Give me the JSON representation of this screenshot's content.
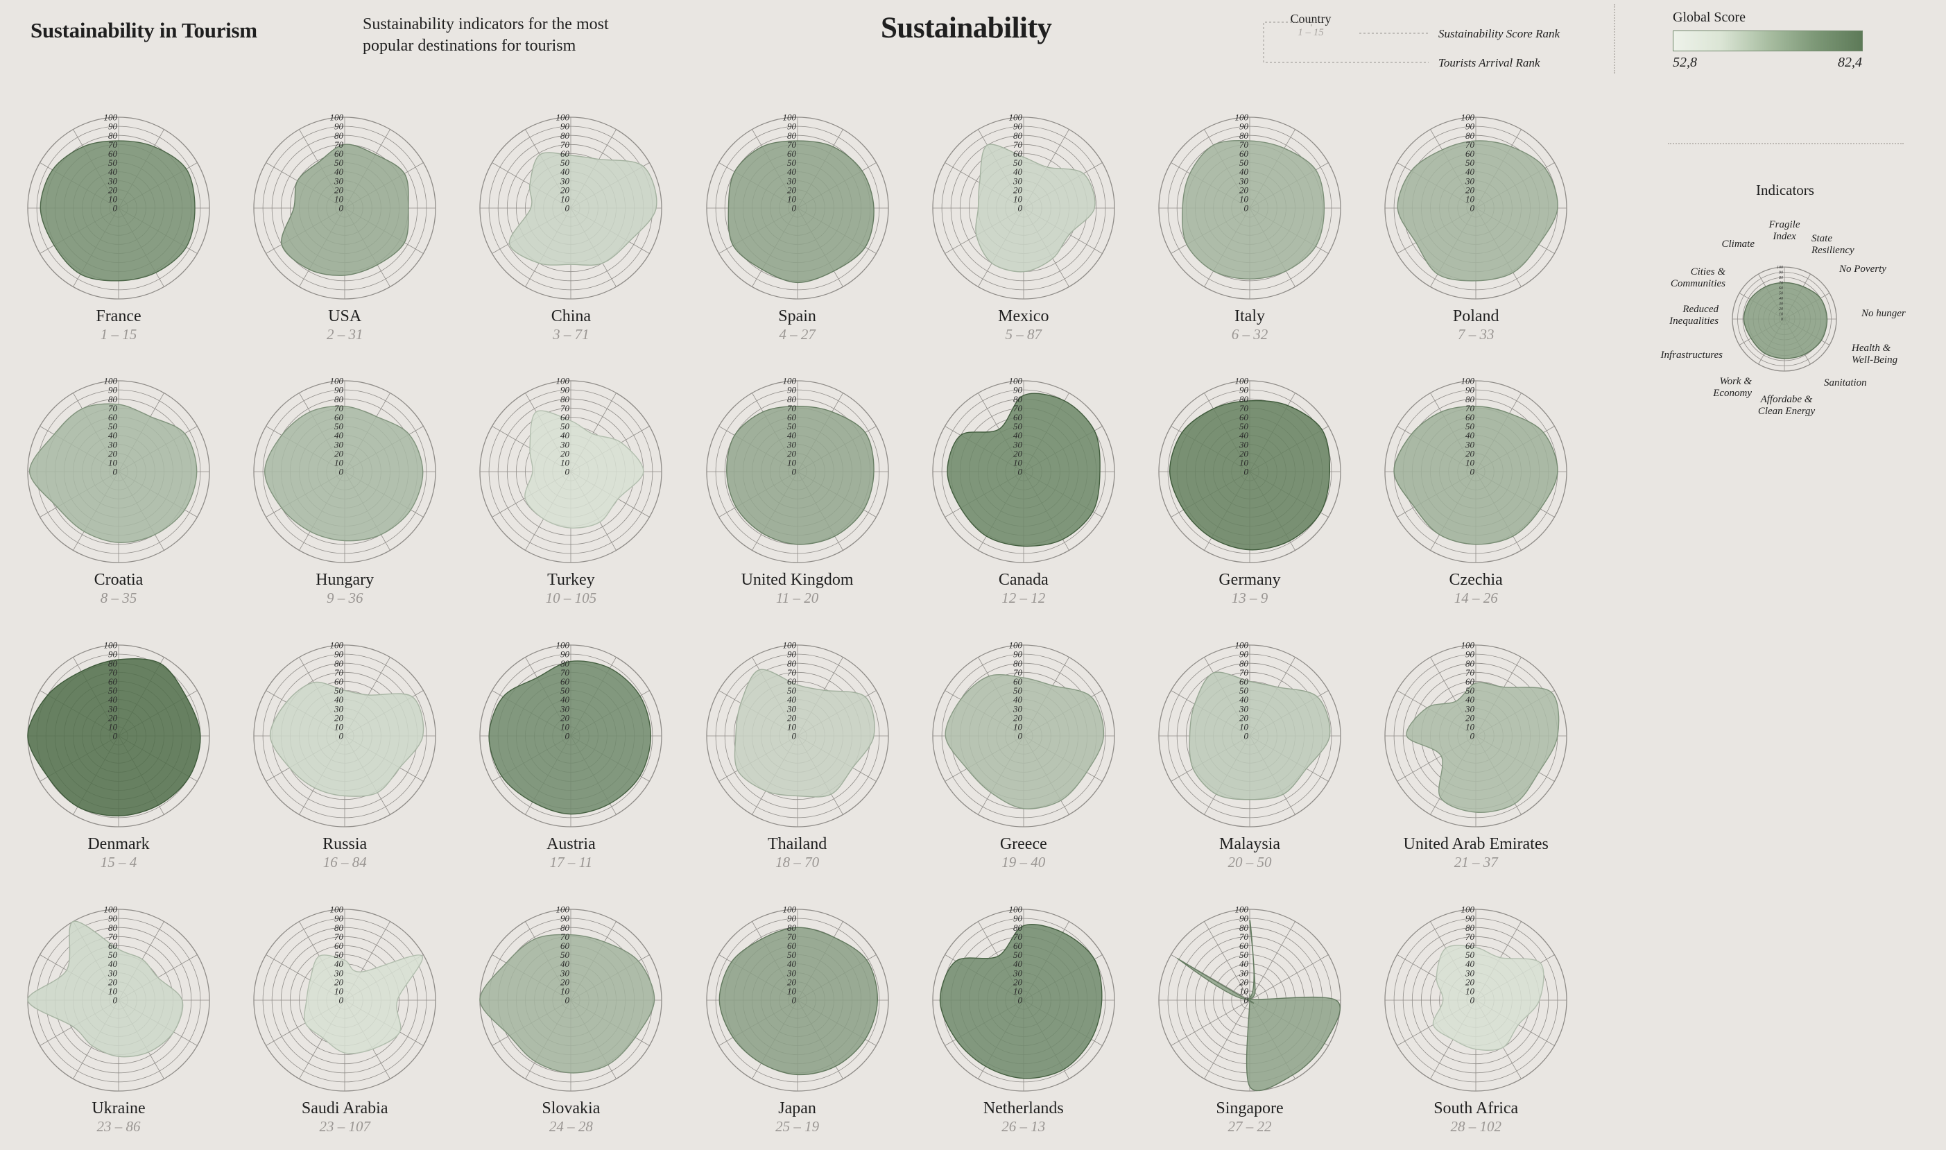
{
  "header": {
    "title": "Sustainability in Tourism",
    "subtitle_line1": "Sustainability indicators for the most",
    "subtitle_line2": "popular destinations for tourism",
    "center_title": "Sustainability"
  },
  "key": {
    "country_label": "Country",
    "example_rank": "1 – 15",
    "score_rank_label": "Sustainability Score Rank",
    "arrival_rank_label": "Tourists Arrival Rank"
  },
  "score_legend": {
    "title": "Global Score",
    "min": "52,8",
    "max": "82,4",
    "min_value": 52.8,
    "max_value": 82.4,
    "color_low": "#eef2ea",
    "color_high": "#5d7a58"
  },
  "indicators": {
    "title": "Indicators",
    "labels": [
      [
        "Fragile",
        "Index"
      ],
      [
        "State",
        "Resiliency"
      ],
      [
        "No Poverty"
      ],
      [
        "No hunger"
      ],
      [
        "Health &",
        "Well-Being"
      ],
      [
        "Sanitation"
      ],
      [
        "Affordabe &",
        "Clean Energy"
      ],
      [
        "Work &",
        "Economy"
      ],
      [
        "Infrastructures"
      ],
      [
        "Reduced",
        "Inequalities"
      ],
      [
        "Cities &",
        "Communities"
      ],
      [
        "Climate"
      ]
    ]
  },
  "colors": {
    "background": "#e9e6e2",
    "grid": "#8f8c88",
    "low": "#eef2ea",
    "high": "#4a6a45"
  },
  "chart_data": {
    "type": "radar",
    "axis_ticks": [
      "0",
      "10",
      "20",
      "30",
      "40",
      "50",
      "60",
      "70",
      "80",
      "90",
      "100"
    ],
    "rmax": 100,
    "countries": [
      {
        "name": "France",
        "rank": "1 – 15",
        "score": 0.72,
        "values": [
          74,
          78,
          86,
          84,
          86,
          82,
          80,
          84,
          82,
          86,
          84,
          78
        ]
      },
      {
        "name": "USA",
        "rank": "2 – 31",
        "score": 0.53,
        "values": [
          70,
          68,
          76,
          70,
          76,
          72,
          74,
          78,
          80,
          56,
          60,
          58
        ]
      },
      {
        "name": "China",
        "rank": "3 – 71",
        "score": 0.22,
        "values": [
          58,
          62,
          92,
          94,
          74,
          70,
          62,
          70,
          78,
          44,
          52,
          68
        ]
      },
      {
        "name": "Spain",
        "rank": "4 – 27",
        "score": 0.58,
        "values": [
          74,
          78,
          82,
          84,
          86,
          80,
          82,
          78,
          82,
          76,
          80,
          78
        ]
      },
      {
        "name": "Mexico",
        "rank": "5 – 87",
        "score": 0.22,
        "values": [
          56,
          52,
          76,
          78,
          58,
          64,
          70,
          70,
          60,
          50,
          56,
          80
        ]
      },
      {
        "name": "Italy",
        "rank": "6 – 32",
        "score": 0.45,
        "values": [
          74,
          76,
          84,
          82,
          84,
          80,
          78,
          80,
          80,
          74,
          76,
          80
        ]
      },
      {
        "name": "Poland",
        "rank": "7 – 33",
        "score": 0.45,
        "values": [
          74,
          78,
          88,
          90,
          80,
          82,
          80,
          84,
          76,
          86,
          82,
          74
        ]
      },
      {
        "name": "Croatia",
        "rank": "8 – 35",
        "score": 0.42,
        "values": [
          74,
          70,
          84,
          86,
          84,
          80,
          78,
          76,
          78,
          98,
          82,
          80
        ]
      },
      {
        "name": "Hungary",
        "rank": "9 – 36",
        "score": 0.42,
        "values": [
          72,
          70,
          82,
          86,
          84,
          80,
          76,
          76,
          80,
          88,
          80,
          76
        ]
      },
      {
        "name": "Turkey",
        "rank": "10 – 105",
        "score": 0.14,
        "values": [
          56,
          48,
          64,
          80,
          60,
          64,
          62,
          60,
          58,
          42,
          52,
          76
        ]
      },
      {
        "name": "United Kingdom",
        "rank": "11 – 20",
        "score": 0.55,
        "values": [
          72,
          76,
          86,
          84,
          84,
          82,
          80,
          78,
          78,
          78,
          80,
          76
        ]
      },
      {
        "name": "Canada",
        "rank": "12 – 12",
        "score": 0.78,
        "values": [
          84,
          90,
          90,
          84,
          88,
          86,
          82,
          82,
          80,
          84,
          80,
          54
        ]
      },
      {
        "name": "Germany",
        "rank": "13 – 9",
        "score": 0.83,
        "values": [
          78,
          84,
          92,
          88,
          90,
          88,
          86,
          84,
          84,
          88,
          86,
          80
        ]
      },
      {
        "name": "Czechia",
        "rank": "14 – 26",
        "score": 0.48,
        "values": [
          72,
          74,
          86,
          90,
          82,
          82,
          80,
          80,
          78,
          90,
          82,
          76
        ]
      },
      {
        "name": "Denmark",
        "rank": "15 – 4",
        "score": 0.96,
        "values": [
          84,
          92,
          86,
          90,
          90,
          88,
          88,
          90,
          90,
          100,
          90,
          82
        ]
      },
      {
        "name": "Russia",
        "rank": "16 – 84",
        "score": 0.2,
        "values": [
          50,
          52,
          86,
          86,
          70,
          72,
          66,
          66,
          70,
          82,
          74,
          68
        ]
      },
      {
        "name": "Austria",
        "rank": "17 – 11",
        "score": 0.76,
        "values": [
          82,
          86,
          88,
          88,
          88,
          86,
          86,
          84,
          88,
          90,
          86,
          74
        ]
      },
      {
        "name": "Thailand",
        "rank": "18 – 70",
        "score": 0.24,
        "values": [
          56,
          58,
          86,
          84,
          70,
          74,
          66,
          70,
          76,
          68,
          72,
          84
        ]
      },
      {
        "name": "Greece",
        "rank": "19 – 40",
        "score": 0.38,
        "values": [
          64,
          64,
          86,
          88,
          80,
          82,
          80,
          72,
          72,
          86,
          80,
          76
        ]
      },
      {
        "name": "Malaysia",
        "rank": "20 – 50",
        "score": 0.3,
        "values": [
          60,
          62,
          86,
          88,
          72,
          74,
          70,
          74,
          72,
          66,
          70,
          80
        ]
      },
      {
        "name": "United Arab Emirates",
        "rank": "21 – 37",
        "score": 0.4,
        "values": [
          58,
          62,
          96,
          90,
          80,
          86,
          84,
          78,
          44,
          76,
          62,
          44
        ]
      },
      {
        "name": "Ukraine",
        "rank": "23 – 86",
        "score": 0.2,
        "values": [
          56,
          52,
          50,
          70,
          70,
          66,
          62,
          58,
          58,
          100,
          66,
          100
        ]
      },
      {
        "name": "Saudi Arabia",
        "rank": "23 – 107",
        "score": 0.14,
        "values": [
          44,
          36,
          98,
          58,
          70,
          62,
          58,
          48,
          50,
          42,
          44,
          56
        ]
      },
      {
        "name": "Slovakia",
        "rank": "24 – 28",
        "score": 0.45,
        "values": [
          72,
          74,
          86,
          92,
          82,
          82,
          80,
          78,
          78,
          100,
          82,
          78
        ]
      },
      {
        "name": "Japan",
        "rank": "25 – 19",
        "score": 0.6,
        "values": [
          80,
          80,
          88,
          88,
          86,
          84,
          82,
          80,
          82,
          86,
          84,
          78
        ]
      },
      {
        "name": "Netherlands",
        "rank": "26 – 13",
        "score": 0.76,
        "values": [
          82,
          86,
          90,
          86,
          86,
          88,
          86,
          84,
          86,
          92,
          86,
          56
        ]
      },
      {
        "name": "Singapore",
        "rank": "27 – 22",
        "score": 0.58,
        "values": [
          88,
          12,
          2,
          95,
          95,
          95,
          95,
          0,
          0,
          2,
          92,
          2
        ]
      },
      {
        "name": "South Africa",
        "rank": "28 – 102",
        "score": 0.14,
        "values": [
          58,
          54,
          82,
          70,
          54,
          60,
          54,
          50,
          54,
          36,
          50,
          66
        ]
      }
    ],
    "sample_radar": {
      "values": [
        70,
        72,
        80,
        82,
        82,
        78,
        76,
        76,
        74,
        78,
        76,
        72
      ]
    }
  }
}
